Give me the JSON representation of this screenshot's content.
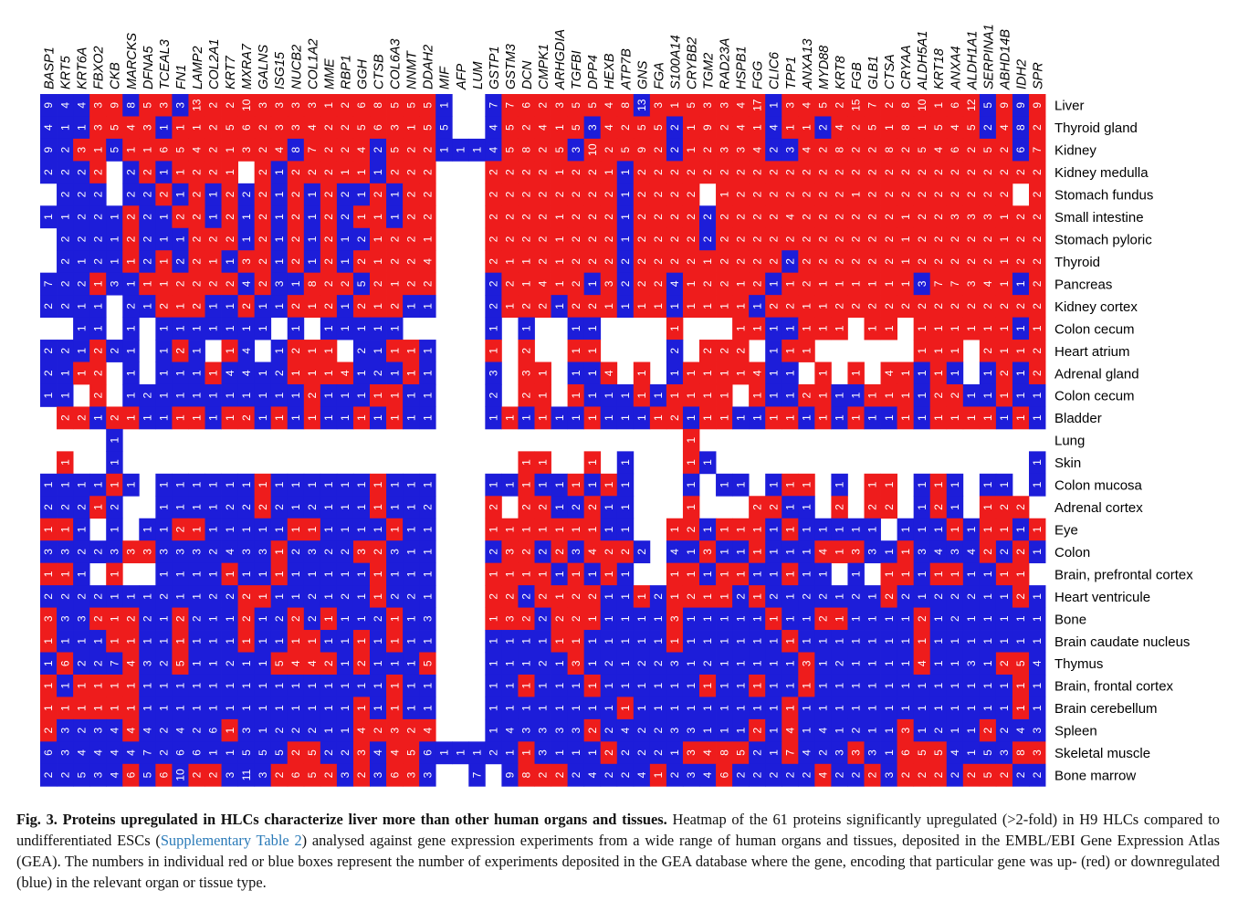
{
  "chart_data": {
    "type": "heatmap",
    "legend": {
      "up_color": "#ee1c1c",
      "down_color": "#1d1dd9",
      "empty_color": "#ffffff"
    },
    "columns": [
      "BASP1",
      "KRT5",
      "KRT6A",
      "FBXO2",
      "CKB",
      "MARCKS",
      "DFNA5",
      "TCEAL3",
      "FN1",
      "LAMP2",
      "COL2A1",
      "KRT7",
      "MXRA7",
      "GALNS",
      "ISG15",
      "NUCB2",
      "COL1A2",
      "MME",
      "RBP1",
      "GGH",
      "CTSB",
      "COL6A3",
      "NNMT",
      "DDAH2",
      "MIF",
      "AFP",
      "LUM",
      "GSTP1",
      "GSTM3",
      "DCN",
      "CMPK1",
      "ARHGDIA",
      "TGFBI",
      "DPP4",
      "HEXB",
      "ATP7B",
      "GNS",
      "FGA",
      "S100A14",
      "CRYBB2",
      "TGM2",
      "RAD23A",
      "HSPB1",
      "FGG",
      "CLIC6",
      "TPP1",
      "ANXA13",
      "MYD88",
      "KRT8",
      "FGB",
      "GLB1",
      "CTSA",
      "CRYAA",
      "ALDH5A1",
      "KRT18",
      "ANXA4",
      "ALDH1A1",
      "SERPINA1",
      "ABHD14B",
      "IDH2",
      "SPR"
    ],
    "rows": [
      "Liver",
      "Thyroid gland",
      "Kidney",
      "Kidney medulla",
      "Stomach fundus",
      "Small intestine",
      "Stomach pyloric",
      "Thyroid",
      "Pancreas",
      "Kidney cortex",
      "Colon cecum",
      "Heart atrium",
      "Adrenal gland",
      "Colon cecum",
      "Bladder",
      "Lung",
      "Skin",
      "Colon mucosa",
      "Adrenal cortex",
      "Eye",
      "Colon",
      "Brain, prefrontal cortex",
      "Heart ventricule",
      "Bone",
      "Brain caudate nucleus",
      "Thymus",
      "Brain, frontal cortex",
      "Brain cerebellum",
      "Spleen",
      "Skeletal muscle",
      "Bone marrow"
    ],
    "cells": [
      "B9 B4 B4 R3 R9 B8 R5 R3 B3 R13 R2 R2 R10 R3 R3 R3 R3 R1 R2 R6 R8 R5 R5 R5 B1 E E B7 R7 R6 R2 R3 R5 R5 R4 R8 B13 R3 R1 R5 R3 R3 R4 R17 B1 R3 R4 R5 R2 R15 R7 R2 R8 R10 R1 R6 R12 B5 R9 B9 R9",
      "B4 B1 B1 R3 R5 R4 R3 B1 R1 R1 R2 R5 R6 R2 R3 R3 R4 R2 R2 R5 R6 R3 R1 R5 B5 E E B4 R5 R2 R4 R1 R5 B3 R4 R2 R5 R5 B2 R1 R9 R2 R4 R1 B4 R1 R1 B2 R4 R2 R5 R1 R8 R1 R5 R4 R5 B2 R4 B8 R2",
      "B9 B2 R3 R1 B5 R1 R1 R6 R5 R4 R2 R1 R3 R2 R4 B8 R7 R2 R2 R4 B2 R5 R2 R2 B1 B1 B1 B4 R5 R8 R2 R5 B3 R10 R2 R5 R9 R2 B2 R1 R2 R3 R3 R4 B2 B3 R4 R2 R8 R2 R2 R8 R2 R5 R4 R6 R2 R5 R2 B6 R7",
      "B2 B2 B2 R2 E B2 R2 B1 R1 R2 R2 R1 E R2 B1 R2 R2 R2 R1 R1 B1 R2 R2 R2 E E E R2 R2 R2 R2 R1 R2 R2 R1 B1 R2 R2 R2 R2 R2 R2 R2 R2 R2 R2 R2 R2 R2 R2 R2 R2 R2 R2 R2 R2 R2 R2 R2 R2 R2",
      "E B2 B2 B2 E B2 B2 R2 B1 R2 B1 R2 B2 R2 B1 R2 B1 R2 B2 B1 R2 B1 R2 R2 E E E R2 R2 R2 R2 R2 R2 R2 R2 B1 R2 R2 R2 R2 E R1 R2 R2 R2 R2 R2 R2 R2 R1 R2 R2 R2 R2 R2 R2 R2 R2 R2 E R2",
      "B1 B1 B2 B2 B1 R2 B2 B1 R2 R2 B1 R2 B1 R2 B1 R2 B1 R2 B2 R1 R1 B1 R2 R2 E E E R2 R2 R2 R2 R1 R2 R2 R2 B1 R2 R2 R2 R2 B2 R2 R2 R2 R2 R4 R2 R2 R2 R2 R2 R2 R1 R2 R2 R3 R3 R3 R1 R2 R2",
      "E B2 B2 B2 B1 R2 B2 B1 B1 R2 R2 R2 B1 R2 B1 R2 B1 R2 B1 B2 R1 R2 R2 R1 E E E R2 R2 R2 R2 R1 R2 R2 R2 B1 R2 R2 R2 R2 B2 R2 R2 R2 R2 R2 R2 R2 R2 R2 R2 R2 R1 R2 R2 R2 R2 R2 R1 R2 R2",
      "E B2 B1 B2 B1 R1 B2 R1 B2 R2 R1 B1 R3 R2 B1 R2 B1 R2 B1 R2 R1 R2 R2 R4 E E E R2 R1 R1 R2 R1 R2 R2 R2 B2 R2 R2 R2 R2 R1 R2 R2 R2 R2 B2 R2 R2 R2 R2 R2 R2 R1 R2 R2 R2 R2 R2 R1 R2 R2",
      "B7 B2 B2 R1 B3 B1 R1 R1 R2 R2 R2 R2 B4 R2 B3 B1 R8 R2 R2 B5 R2 R1 R2 R2 E E E B2 R2 R1 R4 R1 R2 B1 R3 B2 R2 R2 B4 R1 R2 R2 R1 R2 B1 R1 R2 R1 R1 R1 R1 R1 R1 B3 R7 R7 R3 R4 R1 B1 R2",
      "B2 B2 B1 B1 E B2 B1 R2 R1 R2 B1 B1 R2 B1 B1 R2 R1 R2 B1 R2 R1 R2 B1 B1 E E E B2 R1 R2 R2 B1 R2 R2 R1 B1 R1 R1 B1 R1 R1 R1 R1 B1 R2 R2 R1 R1 R2 R2 R2 R2 R2 R2 R2 R2 R2 R2 R2 R2 R2",
      "E E B1 B1 E B1 E B1 B1 B1 B1 B1 B1 B1 E B1 E B1 B1 B1 B1 B1 E E E E E B1 E B1 E E B1 B1 E E E E R1 E E E R1 R1 B1 B1 R1 R1 R1 E R1 R1 E R1 R1 R1 R1 R1 R1 B1 R1",
      "B2 B2 B1 R2 B2 B1 E B1 R2 B1 E R1 B4 E B1 R2 R1 R1 E B2 B1 R1 R1 B1 E E E R1 E R2 E E R1 R1 E E E E B2 E R2 R2 R2 E B1 R1 R1 E E E E E E R1 R1 R1 E R2 R1 R1 R2",
      "B2 B1 R1 R2 E B1 E B1 B1 B1 R1 B4 B4 B1 B2 R1 R1 R1 R4 B1 B2 B1 R1 B1 E E E B3 E R3 R1 E B1 B1 R4 E R1 E B1 R1 R1 R1 R1 R4 B1 B1 E R1 E R1 E R4 R1 B1 R1 B1 E B1 R2 B1 R2",
      "B1 B1 E R2 E B1 B2 B1 B1 B1 B1 B1 B1 B1 B1 B1 R2 B1 B1 B1 R1 R1 B1 B1 E E E B2 E R2 R1 E R1 B1 B1 B1 R1 B1 R1 R1 R1 R1 E R1 B1 B1 R2 R1 B1 B1 R1 R1 R1 B1 R2 R2 B1 B1 R1 B1 B1",
      "E R2 R2 B1 R2 R1 B1 B1 R1 R1 B1 R1 R2 B1 R1 B1 R1 B1 B1 R1 B1 R1 B1 B1 E E E B1 R1 B1 R1 B1 B1 R1 B1 B1 B1 R1 R2 B1 R1 R1 B1 B1 R1 R1 B1 R1 B1 R1 B1 B1 R1 B1 R1 R1 R1 R1 B1 R1 B1",
      "E E E E B1 E E E E E E E E E E E E E E E E E E E E E E E E E E E E E E E E E E R1 E E E E E E E E E E E E E E E E E E E E E",
      "E R1 E E B1 E E E E E E E E E E E E E E E E E E E E E E E E R1 R1 E E R1 E B1 E E E R1 B1 E E E E E E E E E E E E E E E E E E E B1",
      "B1 B1 B1 B1 R1 B1 E B1 B1 B1 B1 B1 B1 R1 B1 B1 B1 B1 B1 B1 R1 B1 B1 B1 E E E B1 B1 R1 B1 B1 R1 B1 R1 B1 E E E B1 E B1 B1 E B1 R1 R1 E B1 E R1 R1 E B1 R1 B1 E B1 B1 E B1",
      "B2 B2 B2 R1 B2 E E B1 B1 B1 B1 B2 B2 R2 B2 B1 B2 B1 B1 B1 R1 B1 B1 B2 E E E R2 E R2 R2 B1 B2 R2 B1 B1 E E E R1 E E E R2 R2 B1 B1 E R2 E R2 R2 E B1 R2 B1 E R1 R2 R2 E",
      "R1 R1 B1 E B1 E B1 B1 R2 R1 B1 B1 B1 B1 B1 R1 R1 B1 B1 B1 B1 R1 B1 B1 E E E R1 R1 R1 R1 R1 R1 R1 B1 B1 E E R1 R2 B1 R1 R1 R1 B1 R1 B1 B1 B1 B1 B1 E B1 B1 B1 R1 B1 R1 R1 B1 R1",
      "B3 B3 B2 B2 B3 R3 R3 B3 B3 B3 B2 B4 B3 B3 R1 B2 B3 B2 B2 R3 R2 B3 B1 B1 E E E B2 R3 R2 B2 R2 B3 R4 R2 R2 B2 E B4 B1 R3 B1 B1 R1 B1 B1 B1 R4 R1 R3 B3 B1 R1 B3 B4 B3 B4 R2 B2 R2 B1",
      "R1 R1 B1 E R1 E E B1 B1 B1 B1 R1 B1 B1 R1 B1 B1 B1 B1 B1 R1 B1 B1 B1 E E E R1 R1 R1 R1 B1 R1 B1 R1 B1 E E R1 R1 B1 R1 R1 B1 B1 R1 B1 B1 E B1 E R1 R1 B1 R1 R1 B1 B1 R1 R1 E",
      "B2 B2 B2 B2 B1 B1 B1 B2 B1 B1 B2 B2 R2 R1 B1 B1 B2 B1 B2 B1 R1 B2 B2 B1 E E E R2 R2 B2 R2 R1 R2 R2 B1 B1 R1 B2 R1 R2 R1 R1 B2 R1 B2 B1 B2 B2 B1 B2 B1 R2 B2 B1 B2 B2 B2 B1 B1 R2 B1",
      "R3 B3 B3 R2 R1 R2 B2 B1 R2 B2 B1 B1 R2 B1 B2 R2 B2 R1 B1 B1 B2 R1 B1 B3 E E E R1 R3 R2 B2 R2 R2 R1 B1 B1 B1 B1 R3 B1 B1 B1 B1 B1 R1 B1 B1 R2 R1 B1 B1 B1 B1 R2 B1 B2 B1 B1 B1 B1 B1",
      "R1 B1 B1 B1 R1 R1 B1 B1 R1 B1 B1 B1 R1 B1 B1 R1 R1 B1 B1 R1 B1 R1 B1 B1 E E E B1 B1 B1 B1 R1 R1 B1 B1 B1 B1 B1 R1 B1 B1 B1 B1 B1 B1 R1 B1 B1 B1 B1 B1 B1 B1 R1 B1 B1 B1 B1 B1 B1 B1",
      "B1 R6 B2 B2 B7 R4 B3 B2 R5 B1 B1 B2 B1 B1 R5 R4 R4 R2 B1 R2 B1 B1 B1 R5 E E E B1 B1 B1 B2 B1 R3 B1 B2 B1 B2 B2 B3 B1 B2 B1 B1 B1 B1 B1 R3 B1 B2 B1 B1 B1 B1 R4 B1 B1 B3 B1 R2 R5 B4",
      "R1 B1 R1 R1 R1 R1 B1 B1 B1 B1 B1 B1 B1 B1 B1 B1 B1 B1 B1 B1 B1 R1 B1 B1 E E E B1 B1 R1 B1 B1 B1 R1 B1 B1 B1 B1 B1 B1 R1 B1 B1 R1 B1 B1 R1 B1 B1 B1 B1 B1 B1 B1 B1 B1 B1 B1 B1 R1 B1",
      "R1 R1 R1 R1 R1 R1 B1 B1 B1 B1 B1 B1 B1 B1 B1 B1 B1 B1 B1 R1 B1 R1 B1 B1 E E E B1 B1 B1 B1 B1 B1 B1 B1 R1 B1 B1 B1 B1 B1 B1 B1 B1 B1 R1 B1 B1 B1 B1 B1 B1 B1 B1 B1 B1 B1 B1 B1 R1 B1",
      "R2 B3 B2 B3 B4 R4 B4 B2 B4 B2 B6 R1 B3 B1 B2 B2 B2 B1 B1 R4 R2 R3 R2 R4 E E E B1 B4 B3 B3 B3 B3 R2 B2 B4 B2 B2 B3 B3 B1 B1 B1 R2 B1 R4 B1 B4 B1 B2 B1 B1 R3 B1 B2 B1 B1 R2 B2 B4 B3",
      "B6 B3 B4 B4 B4 B4 B7 B2 B6 B6 B1 B1 B5 B5 B5 R2 R5 B2 B2 R3 B4 R4 R5 B6 B1 B1 B1 B2 B1 R1 B3 B1 B1 B1 R2 B2 B2 B2 B1 R3 R4 R8 R5 B2 B1 R7 B4 B2 B3 R3 B3 B1 R6 R5 R5 B4 B1 B5 B3 R8 R3",
      "B2 B2 B5 B3 B4 R6 B5 R6 B10 R2 R2 B3 B11 B3 R2 R6 R5 R2 B3 R2 B3 R6 R3 B3 E E B7 E B9 R8 R2 R2 B2 B4 B2 B2 B4 R1 B2 B3 B4 R6 B2 B2 B2 B2 B2 R4 B2 B2 R2 B3 R2 R2 R2 B2 R2 R5 R2 B2 B2"
    ]
  },
  "caption": {
    "label": "Fig. 3.",
    "title": "Proteins upregulated in HLCs characterize liver more than other human organs and tissues.",
    "text_a": "Heatmap of the 61 proteins significantly upregulated (>2-fold) in H9 HLCs compared to undifferentiated ESCs (",
    "link": "Supplementary Table 2",
    "text_b": ") analysed against gene expression experiments from a wide range of human organs and tissues, deposited in the EMBL/EBI Gene Expression Atlas (GEA). The numbers in individual red or blue boxes represent the number of experiments deposited in the GEA database where the gene, encoding that particular gene was up- (red) or downregulated (blue) in the relevant organ or tissue type."
  }
}
